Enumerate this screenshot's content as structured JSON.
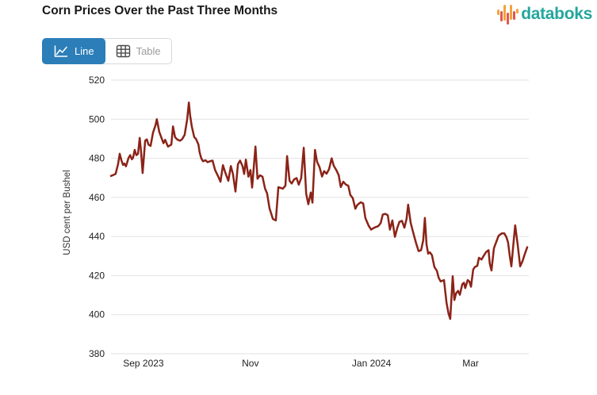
{
  "header": {
    "title": "Corn Prices Over the Past Three Months",
    "logo_text": "databoks",
    "logo_color": "#23A69D"
  },
  "toolbar": {
    "buttons": [
      {
        "label": "Line",
        "active": true,
        "icon": "line-chart-icon",
        "active_bg": "#2C7EB9"
      },
      {
        "label": "Table",
        "active": false,
        "icon": "table-icon"
      }
    ]
  },
  "chart_data": {
    "type": "line",
    "title": "Corn Prices Over the Past Three Months",
    "xlabel": "",
    "ylabel": "USD cent per Bushel",
    "ylim": [
      380,
      520
    ],
    "y_ticks": [
      380,
      400,
      420,
      440,
      460,
      480,
      500,
      520
    ],
    "x_ticks": [
      {
        "label": "Sep 2023",
        "pos": 0.076
      },
      {
        "label": "Nov",
        "pos": 0.333
      },
      {
        "label": "Jan 2024",
        "pos": 0.624
      },
      {
        "label": "Mar",
        "pos": 0.862
      }
    ],
    "grid": "horizontal",
    "legend": "none",
    "line_color": "#8B2318",
    "grid_color": "#e2e2e2",
    "tick_color": "#222222",
    "series": [
      {
        "name": "Corn Prices",
        "points": [
          [
            0.0,
            471
          ],
          [
            0.006,
            471.5
          ],
          [
            0.011,
            472
          ],
          [
            0.017,
            477
          ],
          [
            0.021,
            482.3
          ],
          [
            0.025,
            479
          ],
          [
            0.029,
            476.6
          ],
          [
            0.032,
            477.3
          ],
          [
            0.036,
            475.9
          ],
          [
            0.042,
            480.2
          ],
          [
            0.046,
            481.6
          ],
          [
            0.05,
            479.5
          ],
          [
            0.053,
            480.2
          ],
          [
            0.057,
            484.3
          ],
          [
            0.061,
            481.6
          ],
          [
            0.065,
            482.3
          ],
          [
            0.069,
            490.4
          ],
          [
            0.072,
            484
          ],
          [
            0.076,
            472.5
          ],
          [
            0.082,
            489
          ],
          [
            0.086,
            489.7
          ],
          [
            0.09,
            487
          ],
          [
            0.095,
            486.3
          ],
          [
            0.101,
            493.1
          ],
          [
            0.107,
            497
          ],
          [
            0.11,
            500
          ],
          [
            0.116,
            493.5
          ],
          [
            0.122,
            490
          ],
          [
            0.126,
            487.7
          ],
          [
            0.13,
            489.5
          ],
          [
            0.133,
            488
          ],
          [
            0.137,
            486
          ],
          [
            0.141,
            486.5
          ],
          [
            0.145,
            487
          ],
          [
            0.149,
            496.3
          ],
          [
            0.154,
            490.8
          ],
          [
            0.16,
            489.5
          ],
          [
            0.166,
            489
          ],
          [
            0.171,
            489.8
          ],
          [
            0.177,
            492
          ],
          [
            0.183,
            500
          ],
          [
            0.187,
            508.5
          ],
          [
            0.19,
            502
          ],
          [
            0.194,
            496.3
          ],
          [
            0.2,
            490.8
          ],
          [
            0.204,
            490
          ],
          [
            0.21,
            487
          ],
          [
            0.213,
            483
          ],
          [
            0.217,
            480
          ],
          [
            0.221,
            478.5
          ],
          [
            0.227,
            479
          ],
          [
            0.232,
            478
          ],
          [
            0.238,
            478.5
          ],
          [
            0.244,
            478.8
          ],
          [
            0.25,
            474
          ],
          [
            0.257,
            471
          ],
          [
            0.263,
            468
          ],
          [
            0.269,
            476.5
          ],
          [
            0.274,
            473
          ],
          [
            0.282,
            468.5
          ],
          [
            0.288,
            476
          ],
          [
            0.293,
            472
          ],
          [
            0.299,
            463
          ],
          [
            0.305,
            477
          ],
          [
            0.31,
            478.8
          ],
          [
            0.316,
            476
          ],
          [
            0.32,
            472
          ],
          [
            0.324,
            479.3
          ],
          [
            0.33,
            470.6
          ],
          [
            0.335,
            474
          ],
          [
            0.339,
            465
          ],
          [
            0.347,
            486
          ],
          [
            0.352,
            469.5
          ],
          [
            0.358,
            471.3
          ],
          [
            0.364,
            470.6
          ],
          [
            0.37,
            464.5
          ],
          [
            0.375,
            462
          ],
          [
            0.381,
            454.3
          ],
          [
            0.389,
            449
          ],
          [
            0.396,
            448.2
          ],
          [
            0.402,
            465.2
          ],
          [
            0.408,
            464.8
          ],
          [
            0.413,
            464.5
          ],
          [
            0.419,
            466
          ],
          [
            0.423,
            481.1
          ],
          [
            0.429,
            468.5
          ],
          [
            0.434,
            467.1
          ],
          [
            0.44,
            469.2
          ],
          [
            0.446,
            469.9
          ],
          [
            0.451,
            466.5
          ],
          [
            0.457,
            469.9
          ],
          [
            0.463,
            485.4
          ],
          [
            0.469,
            461.8
          ],
          [
            0.474,
            456.5
          ],
          [
            0.48,
            462.5
          ],
          [
            0.484,
            457.3
          ],
          [
            0.49,
            484.3
          ],
          [
            0.495,
            478.2
          ],
          [
            0.501,
            475.5
          ],
          [
            0.507,
            470.7
          ],
          [
            0.512,
            473.4
          ],
          [
            0.518,
            472.1
          ],
          [
            0.524,
            474.5
          ],
          [
            0.53,
            480
          ],
          [
            0.535,
            476.2
          ],
          [
            0.541,
            474.1
          ],
          [
            0.547,
            471.4
          ],
          [
            0.552,
            465.3
          ],
          [
            0.558,
            468
          ],
          [
            0.564,
            466.6
          ],
          [
            0.57,
            466
          ],
          [
            0.575,
            461.2
          ],
          [
            0.581,
            459.6
          ],
          [
            0.587,
            454.2
          ],
          [
            0.592,
            456.2
          ],
          [
            0.6,
            457.5
          ],
          [
            0.606,
            456.9
          ],
          [
            0.611,
            449.5
          ],
          [
            0.619,
            445.5
          ],
          [
            0.625,
            443.5
          ],
          [
            0.63,
            444.2
          ],
          [
            0.636,
            444.8
          ],
          [
            0.642,
            445.3
          ],
          [
            0.648,
            446.9
          ],
          [
            0.653,
            451.2
          ],
          [
            0.659,
            451.6
          ],
          [
            0.665,
            450.9
          ],
          [
            0.67,
            443.5
          ],
          [
            0.676,
            448.2
          ],
          [
            0.682,
            439.8
          ],
          [
            0.688,
            444.5
          ],
          [
            0.693,
            447.5
          ],
          [
            0.699,
            448
          ],
          [
            0.705,
            444.5
          ],
          [
            0.71,
            449
          ],
          [
            0.714,
            456.3
          ],
          [
            0.72,
            447
          ],
          [
            0.726,
            442.1
          ],
          [
            0.733,
            436.6
          ],
          [
            0.739,
            432.5
          ],
          [
            0.745,
            433
          ],
          [
            0.75,
            438
          ],
          [
            0.754,
            449.5
          ],
          [
            0.758,
            435.9
          ],
          [
            0.762,
            431.2
          ],
          [
            0.766,
            431.9
          ],
          [
            0.771,
            430.5
          ],
          [
            0.777,
            424.4
          ],
          [
            0.783,
            422.4
          ],
          [
            0.787,
            419
          ],
          [
            0.792,
            417
          ],
          [
            0.8,
            417.7
          ],
          [
            0.806,
            406.1
          ],
          [
            0.811,
            400.5
          ],
          [
            0.815,
            397.8
          ],
          [
            0.821,
            419.7
          ],
          [
            0.825,
            407.5
          ],
          [
            0.829,
            410.9
          ],
          [
            0.834,
            412.2
          ],
          [
            0.838,
            410.2
          ],
          [
            0.844,
            415.6
          ],
          [
            0.848,
            416.3
          ],
          [
            0.851,
            413.6
          ],
          [
            0.857,
            417.7
          ],
          [
            0.861,
            417
          ],
          [
            0.865,
            414.3
          ],
          [
            0.87,
            423
          ],
          [
            0.874,
            424.4
          ],
          [
            0.88,
            425
          ],
          [
            0.884,
            429.1
          ],
          [
            0.89,
            428.2
          ],
          [
            0.895,
            430
          ],
          [
            0.901,
            432
          ],
          [
            0.907,
            433
          ],
          [
            0.91,
            426
          ],
          [
            0.914,
            422.6
          ],
          [
            0.92,
            434
          ],
          [
            0.926,
            437.5
          ],
          [
            0.931,
            440.3
          ],
          [
            0.935,
            441
          ],
          [
            0.939,
            441.6
          ],
          [
            0.945,
            441.6
          ],
          [
            0.95,
            439.6
          ],
          [
            0.954,
            437
          ],
          [
            0.958,
            430
          ],
          [
            0.962,
            424.7
          ],
          [
            0.968,
            439
          ],
          [
            0.971,
            445.7
          ],
          [
            0.977,
            436
          ],
          [
            0.983,
            424.7
          ],
          [
            0.989,
            427.5
          ],
          [
            0.994,
            431
          ],
          [
            1.0,
            434.5
          ]
        ]
      }
    ]
  }
}
